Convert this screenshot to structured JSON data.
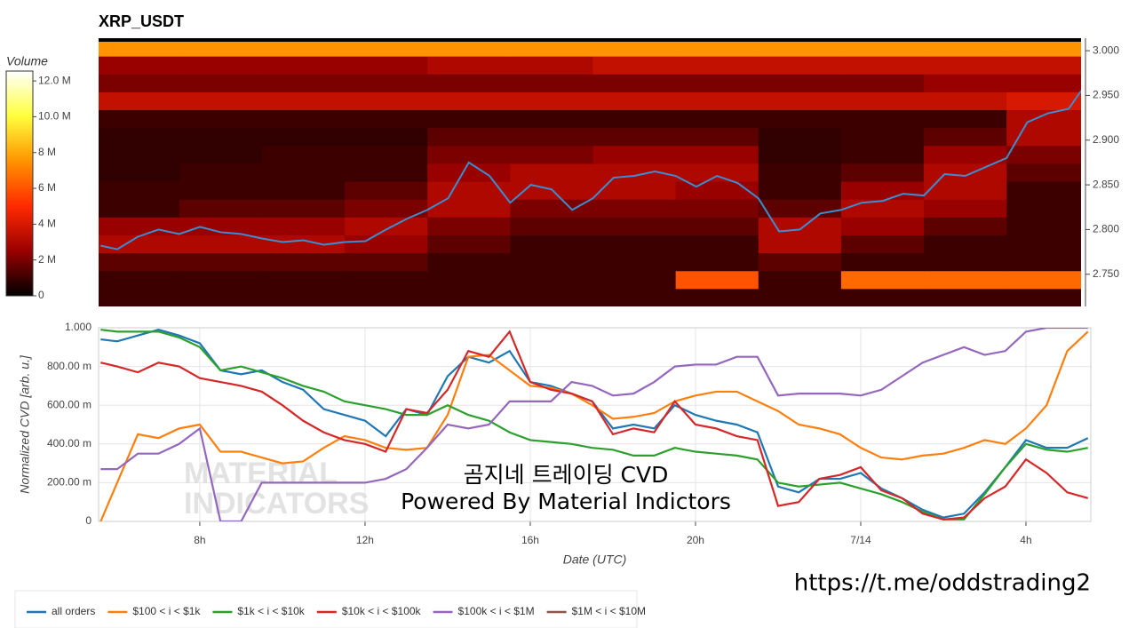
{
  "chart_data": [
    {
      "type": "heatmap",
      "title": "XRP_USDT",
      "colorbar_label": "Volume",
      "colorscale": [
        "#000000",
        "#9a0000",
        "#ff2a00",
        "#ff9400",
        "#ffff3c",
        "#ffffff"
      ],
      "zlim": [
        0,
        12.55
      ],
      "zticks": [
        0,
        {
          "value": 2,
          "label": "2 M"
        },
        {
          "value": 4,
          "label": "4 M"
        },
        {
          "value": 6,
          "label": "6 M"
        },
        {
          "value": 8,
          "label": "8 M"
        },
        {
          "value": 10,
          "label": "10.0 M"
        },
        {
          "value": 12,
          "label": "12.0 M"
        }
      ],
      "xlim": [
        5.55,
        29.3
      ],
      "ylim": [
        2.714,
        3.014
      ],
      "yticks": [
        {
          "value": 2.75,
          "label": "2.750"
        },
        {
          "value": 2.8,
          "label": "2.800"
        },
        {
          "value": 2.85,
          "label": "2.850"
        },
        {
          "value": 2.9,
          "label": "2.900"
        },
        {
          "value": 2.95,
          "label": "2.950"
        },
        {
          "value": 3.0,
          "label": "3.000"
        }
      ],
      "xbins": [
        5.5,
        7.5,
        9.5,
        11.5,
        13.5,
        15.5,
        17.5,
        19.5,
        21.5,
        23.5,
        25.5,
        27.5,
        29.5
      ],
      "ybins": [
        2.714,
        2.734,
        2.754,
        2.774,
        2.794,
        2.814,
        2.834,
        2.854,
        2.874,
        2.894,
        2.914,
        2.934,
        2.954,
        2.974,
        2.994,
        3.014
      ],
      "z": [
        [
          1,
          1,
          1,
          1,
          1,
          1,
          1,
          1,
          1,
          1,
          1,
          1
        ],
        [
          1,
          1,
          1,
          1,
          1,
          1,
          1,
          6,
          1,
          6.5,
          6.5,
          6.5
        ],
        [
          1.5,
          1.5,
          1.5,
          1.5,
          1,
          1,
          1,
          1,
          1.5,
          1,
          1,
          1
        ],
        [
          3,
          3,
          3,
          2.5,
          1.5,
          1,
          1,
          1,
          3,
          1.5,
          1,
          1
        ],
        [
          2.5,
          2.5,
          2.5,
          3,
          2,
          1.5,
          1.5,
          1.5,
          3,
          2.5,
          1.5,
          1
        ],
        [
          1,
          1.5,
          1.5,
          2,
          3,
          2,
          2,
          2,
          1.5,
          3,
          2.5,
          1
        ],
        [
          1,
          1,
          1,
          1.5,
          3,
          3,
          3,
          2.5,
          1,
          2.5,
          3,
          1
        ],
        [
          0.8,
          1,
          1,
          1,
          2.5,
          3,
          3,
          3,
          1,
          1.5,
          3,
          1.5
        ],
        [
          0.8,
          0.8,
          1,
          1,
          2,
          2,
          2.5,
          2.5,
          0.8,
          1,
          2.5,
          2
        ],
        [
          0.8,
          0.8,
          0.8,
          0.8,
          1.5,
          1.5,
          1.5,
          1.5,
          0.8,
          1,
          1.5,
          3
        ],
        [
          1,
          1,
          1,
          1,
          1,
          1,
          1,
          1,
          1,
          1,
          1,
          3
        ],
        [
          3.5,
          3.5,
          3.5,
          3.5,
          3.5,
          3.5,
          3.5,
          3.5,
          3.5,
          3.5,
          3.5,
          4
        ],
        [
          2,
          2,
          2,
          2,
          2,
          2,
          2,
          2,
          2,
          2,
          2.5,
          2.5
        ],
        [
          2.5,
          2.5,
          2.5,
          2.5,
          3,
          3,
          3.5,
          3.5,
          3.5,
          3.5,
          3.5,
          3.5
        ],
        [
          7.5,
          7.5,
          7.5,
          7.5,
          7.5,
          7.5,
          7.5,
          7.5,
          7.5,
          7.5,
          7.5,
          7.5
        ]
      ],
      "series": [
        {
          "color": "#3a8fd0",
          "x": [
            5.6,
            6,
            6.5,
            7,
            7.5,
            8,
            8.5,
            9,
            9.5,
            10,
            10.5,
            11,
            11.5,
            12,
            12.5,
            13,
            13.5,
            14,
            14.5,
            15,
            15.5,
            16,
            16.5,
            17,
            17.5,
            18,
            18.5,
            19,
            19.5,
            20,
            20.5,
            21,
            21.5,
            22,
            22.5,
            23,
            23.5,
            24,
            24.5,
            25,
            25.5,
            26,
            26.5,
            27,
            27.5,
            28,
            28.5,
            29,
            29.3
          ],
          "values": [
            2.782,
            2.778,
            2.792,
            2.8,
            2.795,
            2.803,
            2.797,
            2.795,
            2.79,
            2.786,
            2.788,
            2.783,
            2.786,
            2.787,
            2.8,
            2.812,
            2.822,
            2.835,
            2.875,
            2.86,
            2.83,
            2.85,
            2.845,
            2.822,
            2.835,
            2.858,
            2.86,
            2.865,
            2.86,
            2.848,
            2.86,
            2.852,
            2.835,
            2.798,
            2.8,
            2.818,
            2.822,
            2.83,
            2.832,
            2.84,
            2.838,
            2.862,
            2.86,
            2.87,
            2.88,
            2.92,
            2.93,
            2.935,
            2.955
          ]
        }
      ]
    },
    {
      "type": "line",
      "ylabel": "Normalized CVD [arb. u.]",
      "xlabel": "Date (UTC)",
      "xlim": [
        5.55,
        29.57
      ],
      "ylim": [
        0,
        1
      ],
      "grid": true,
      "legend": "bottom",
      "xticks": [
        {
          "value": 8,
          "label": "8h"
        },
        {
          "value": 12,
          "label": "12h"
        },
        {
          "value": 16,
          "label": "16h"
        },
        {
          "value": 20,
          "label": "20h"
        },
        {
          "value": 24,
          "label": "7/14"
        },
        {
          "value": 28,
          "label": "4h"
        }
      ],
      "yticks": [
        0,
        {
          "value": 0.2,
          "label": "200.00 m"
        },
        {
          "value": 0.4,
          "label": "400.00 m"
        },
        {
          "value": 0.6,
          "label": "600.00 m"
        },
        {
          "value": 0.8,
          "label": "800.00 m"
        },
        {
          "value": 1,
          "label": "1.000"
        }
      ],
      "watermark": [
        "MATERIAL",
        "INDICATORS"
      ],
      "annotations": [
        "곰지네 트레이딩 CVD",
        "Powered By Material Indictors"
      ],
      "link": "https://t.me/oddstrading2",
      "x": [
        5.6,
        6,
        6.5,
        7,
        7.5,
        8,
        8.5,
        9,
        9.5,
        10,
        10.5,
        11,
        11.5,
        12,
        12.5,
        13,
        13.5,
        14,
        14.5,
        15,
        15.5,
        16,
        16.5,
        17,
        17.5,
        18,
        18.5,
        19,
        19.5,
        20,
        20.5,
        21,
        21.5,
        22,
        22.5,
        23,
        23.5,
        24,
        24.5,
        25,
        25.5,
        26,
        26.5,
        27,
        27.5,
        28,
        28.5,
        29,
        29.5
      ],
      "series": [
        {
          "name": "all orders",
          "color": "#1f77b4",
          "values": [
            0.94,
            0.93,
            0.96,
            0.99,
            0.96,
            0.92,
            0.78,
            0.76,
            0.78,
            0.72,
            0.68,
            0.58,
            0.55,
            0.52,
            0.44,
            0.58,
            0.55,
            0.75,
            0.85,
            0.82,
            0.88,
            0.72,
            0.7,
            0.66,
            0.62,
            0.48,
            0.5,
            0.48,
            0.6,
            0.55,
            0.52,
            0.5,
            0.46,
            0.18,
            0.15,
            0.22,
            0.22,
            0.25,
            0.17,
            0.12,
            0.06,
            0.02,
            0.04,
            0.15,
            0.28,
            0.42,
            0.38,
            0.38,
            0.43
          ]
        },
        {
          "name": "$100 < i < $1k",
          "color": "#ff7f0e",
          "values": [
            0.0,
            0.2,
            0.45,
            0.43,
            0.48,
            0.5,
            0.36,
            0.36,
            0.33,
            0.3,
            0.31,
            0.38,
            0.44,
            0.42,
            0.38,
            0.37,
            0.38,
            0.55,
            0.85,
            0.86,
            0.78,
            0.7,
            0.69,
            0.66,
            0.6,
            0.53,
            0.54,
            0.56,
            0.62,
            0.65,
            0.67,
            0.67,
            0.62,
            0.57,
            0.5,
            0.48,
            0.45,
            0.38,
            0.33,
            0.32,
            0.34,
            0.35,
            0.38,
            0.42,
            0.4,
            0.48,
            0.6,
            0.88,
            0.98
          ]
        },
        {
          "name": "$1k < i < $10k",
          "color": "#2ca02c",
          "values": [
            0.99,
            0.98,
            0.98,
            0.98,
            0.95,
            0.9,
            0.78,
            0.8,
            0.77,
            0.74,
            0.7,
            0.67,
            0.62,
            0.6,
            0.58,
            0.55,
            0.55,
            0.6,
            0.55,
            0.52,
            0.46,
            0.42,
            0.41,
            0.4,
            0.38,
            0.37,
            0.34,
            0.34,
            0.38,
            0.36,
            0.35,
            0.34,
            0.32,
            0.2,
            0.18,
            0.19,
            0.2,
            0.17,
            0.14,
            0.1,
            0.05,
            0.01,
            0.01,
            0.14,
            0.28,
            0.4,
            0.37,
            0.36,
            0.38
          ]
        },
        {
          "name": "$10k < i < $100k",
          "color": "#d62728",
          "values": [
            0.82,
            0.8,
            0.77,
            0.82,
            0.8,
            0.74,
            0.72,
            0.7,
            0.67,
            0.6,
            0.52,
            0.46,
            0.42,
            0.4,
            0.36,
            0.58,
            0.56,
            0.68,
            0.88,
            0.85,
            0.98,
            0.72,
            0.68,
            0.66,
            0.62,
            0.45,
            0.48,
            0.46,
            0.62,
            0.5,
            0.48,
            0.44,
            0.42,
            0.08,
            0.1,
            0.22,
            0.24,
            0.28,
            0.16,
            0.12,
            0.04,
            0.01,
            0.02,
            0.12,
            0.18,
            0.32,
            0.25,
            0.15,
            0.12
          ]
        },
        {
          "name": "$100k < i < $1M",
          "color": "#9467bd",
          "values": [
            0.27,
            0.27,
            0.35,
            0.35,
            0.4,
            0.48,
            0.0,
            0.0,
            0.2,
            0.2,
            0.2,
            0.2,
            0.2,
            0.2,
            0.22,
            0.27,
            0.38,
            0.5,
            0.48,
            0.5,
            0.62,
            0.62,
            0.62,
            0.72,
            0.7,
            0.65,
            0.66,
            0.72,
            0.8,
            0.81,
            0.81,
            0.85,
            0.85,
            0.65,
            0.66,
            0.66,
            0.66,
            0.65,
            0.68,
            0.75,
            0.82,
            0.86,
            0.9,
            0.86,
            0.88,
            0.98,
            1.0,
            1.0,
            1.0
          ]
        },
        {
          "name": "$1M < i < $10M",
          "color": "#8c564b",
          "values": [
            null,
            null,
            null,
            null,
            null,
            null,
            null,
            null,
            null,
            null,
            null,
            null,
            null,
            null,
            null,
            null,
            null,
            null,
            null,
            null,
            null,
            null,
            null,
            null,
            null,
            null,
            null,
            null,
            null,
            null,
            null,
            null,
            null,
            null,
            null,
            null,
            null,
            null,
            null,
            null,
            null,
            null,
            null,
            null,
            null,
            null,
            null,
            null,
            null
          ]
        }
      ]
    }
  ]
}
